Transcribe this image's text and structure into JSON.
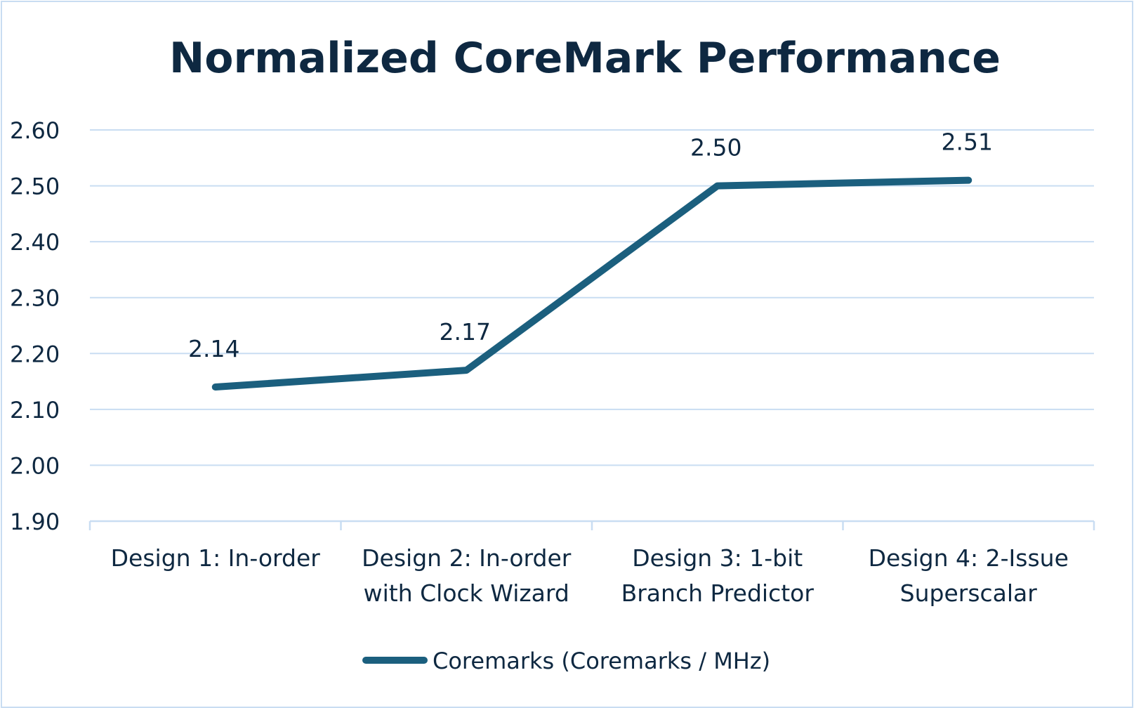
{
  "chart_data": {
    "type": "line",
    "title": "Normalized CoreMark Performance",
    "categories": [
      "Design 1: In-order",
      "Design 2: In-order with Clock Wizard",
      "Design 3: 1-bit Branch Predictor",
      "Design 4: 2-Issue Superscalar"
    ],
    "category_lines": [
      [
        "Design 1: In-order"
      ],
      [
        "Design 2: In-order",
        "with Clock Wizard"
      ],
      [
        "Design 3: 1-bit",
        "Branch Predictor"
      ],
      [
        "Design 4: 2-Issue",
        "Superscalar"
      ]
    ],
    "series": [
      {
        "name": "Coremarks (Coremarks / MHz)",
        "values": [
          2.14,
          2.17,
          2.5,
          2.51
        ],
        "labels": [
          "2.14",
          "2.17",
          "2.50",
          "2.51"
        ],
        "color": "#1b5f7e"
      }
    ],
    "yticks": [
      "1.90",
      "2.00",
      "2.10",
      "2.20",
      "2.30",
      "2.40",
      "2.50",
      "2.60"
    ],
    "ylim": [
      1.9,
      2.6
    ],
    "grid": true,
    "gridColor": "#c9ddf2",
    "legend": "bottom",
    "xlabel": "",
    "ylabel": ""
  }
}
